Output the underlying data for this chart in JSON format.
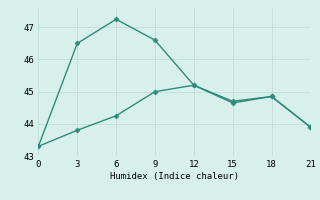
{
  "line1_x": [
    0,
    3,
    6,
    9,
    12,
    15,
    18,
    21
  ],
  "line1_y": [
    43.3,
    46.5,
    47.25,
    46.6,
    45.2,
    44.7,
    44.85,
    43.9
  ],
  "line2_x": [
    0,
    3,
    6,
    9,
    12,
    15,
    18,
    21
  ],
  "line2_y": [
    43.3,
    43.8,
    44.25,
    45.0,
    45.2,
    44.65,
    44.85,
    43.9
  ],
  "line_color": "#2e8b7a",
  "bg_color": "#d8f0ec",
  "grid_color": "#c0ddd8",
  "xlabel": "Humidex (Indice chaleur)",
  "xlim": [
    0,
    21
  ],
  "ylim": [
    43.0,
    47.6
  ],
  "xticks": [
    0,
    3,
    6,
    9,
    12,
    15,
    18,
    21
  ],
  "yticks": [
    43,
    44,
    45,
    46,
    47
  ],
  "marker": "D",
  "markersize": 2.5,
  "linewidth": 1.0,
  "tick_fontsize": 6.5,
  "xlabel_fontsize": 6.5
}
